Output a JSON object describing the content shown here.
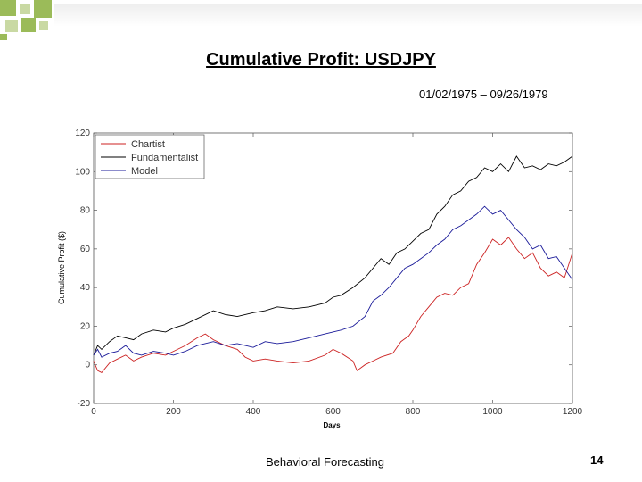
{
  "slide": {
    "title": "Cumulative Profit: USDJPY",
    "date_range": "01/02/1975 – 09/26/1979",
    "footer": "Behavioral Forecasting",
    "page_number": "14",
    "accent_color": "#9bbb59"
  },
  "chart_data": {
    "type": "line",
    "xlabel": "Days",
    "ylabel": "Cumulative Profit ($)",
    "xlim": [
      0,
      1200
    ],
    "ylim": [
      -20,
      120
    ],
    "xticks": [
      0,
      200,
      400,
      600,
      800,
      1000,
      1200
    ],
    "yticks": [
      -20,
      0,
      20,
      40,
      60,
      80,
      100,
      120
    ],
    "legend_position": "top-left",
    "grid": false,
    "series": [
      {
        "name": "Chartist",
        "color": "#cc2222",
        "x": [
          0,
          10,
          20,
          40,
          60,
          80,
          100,
          120,
          150,
          180,
          200,
          230,
          260,
          280,
          300,
          330,
          360,
          380,
          400,
          430,
          460,
          500,
          540,
          580,
          600,
          620,
          650,
          660,
          680,
          700,
          720,
          750,
          770,
          790,
          800,
          820,
          840,
          860,
          880,
          900,
          920,
          940,
          960,
          980,
          1000,
          1020,
          1040,
          1060,
          1080,
          1100,
          1120,
          1140,
          1160,
          1180,
          1200
        ],
        "y": [
          2,
          -3,
          -4,
          1,
          3,
          5,
          2,
          4,
          6,
          5,
          7,
          10,
          14,
          16,
          13,
          10,
          8,
          4,
          2,
          3,
          2,
          1,
          2,
          5,
          8,
          6,
          2,
          -3,
          0,
          2,
          4,
          6,
          12,
          15,
          18,
          25,
          30,
          35,
          37,
          36,
          40,
          42,
          52,
          58,
          65,
          62,
          66,
          60,
          55,
          58,
          50,
          46,
          48,
          45,
          58
        ]
      },
      {
        "name": "Fundamentalist",
        "color": "#000000",
        "x": [
          0,
          10,
          20,
          40,
          60,
          80,
          100,
          120,
          150,
          180,
          200,
          230,
          260,
          300,
          330,
          360,
          400,
          430,
          460,
          500,
          540,
          580,
          600,
          620,
          650,
          680,
          700,
          720,
          740,
          760,
          780,
          800,
          820,
          840,
          860,
          880,
          900,
          920,
          940,
          960,
          980,
          1000,
          1020,
          1040,
          1060,
          1080,
          1100,
          1120,
          1140,
          1160,
          1180,
          1200
        ],
        "y": [
          5,
          10,
          8,
          12,
          15,
          14,
          13,
          16,
          18,
          17,
          19,
          21,
          24,
          28,
          26,
          25,
          27,
          28,
          30,
          29,
          30,
          32,
          35,
          36,
          40,
          45,
          50,
          55,
          52,
          58,
          60,
          64,
          68,
          70,
          78,
          82,
          88,
          90,
          95,
          97,
          102,
          100,
          104,
          100,
          108,
          102,
          103,
          101,
          104,
          103,
          105,
          108
        ]
      },
      {
        "name": "Model",
        "color": "#1a1a99",
        "x": [
          0,
          10,
          20,
          40,
          60,
          80,
          100,
          120,
          150,
          180,
          200,
          230,
          260,
          300,
          330,
          360,
          400,
          430,
          460,
          500,
          540,
          580,
          600,
          620,
          650,
          680,
          700,
          720,
          740,
          760,
          780,
          800,
          820,
          840,
          860,
          880,
          900,
          920,
          940,
          960,
          980,
          1000,
          1020,
          1040,
          1060,
          1080,
          1100,
          1120,
          1140,
          1160,
          1180,
          1200
        ],
        "y": [
          5,
          8,
          4,
          6,
          7,
          10,
          6,
          5,
          7,
          6,
          5,
          7,
          10,
          12,
          10,
          11,
          9,
          12,
          11,
          12,
          14,
          16,
          17,
          18,
          20,
          25,
          33,
          36,
          40,
          45,
          50,
          52,
          55,
          58,
          62,
          65,
          70,
          72,
          75,
          78,
          82,
          78,
          80,
          75,
          70,
          66,
          60,
          62,
          55,
          56,
          50,
          44
        ]
      }
    ]
  }
}
